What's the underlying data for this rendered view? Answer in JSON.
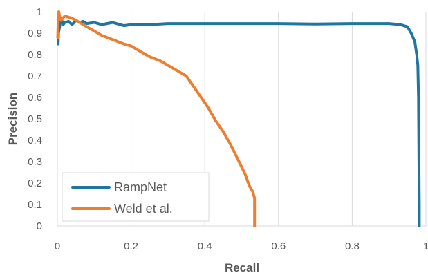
{
  "chart_data": {
    "type": "line",
    "title": "",
    "xlabel": "Recall",
    "ylabel": "Precision",
    "xlim": [
      0,
      1
    ],
    "ylim": [
      0,
      1
    ],
    "grid": "vertical",
    "legend_position": "bottom-left",
    "x_ticks": [
      "0",
      "0.2",
      "0.4",
      "0.6",
      "0.8",
      "1"
    ],
    "y_ticks": [
      "0",
      "0.1",
      "0.2",
      "0.3",
      "0.4",
      "0.5",
      "0.6",
      "0.7",
      "0.8",
      "0.9",
      "1"
    ],
    "series": [
      {
        "name": "RampNet",
        "color": "#1f77a0",
        "x": [
          0.002,
          0.003,
          0.005,
          0.008,
          0.012,
          0.016,
          0.02,
          0.03,
          0.04,
          0.05,
          0.06,
          0.07,
          0.08,
          0.1,
          0.12,
          0.15,
          0.18,
          0.2,
          0.25,
          0.3,
          0.4,
          0.5,
          0.6,
          0.7,
          0.8,
          0.85,
          0.9,
          0.93,
          0.95,
          0.96,
          0.97,
          0.975,
          0.978,
          0.98,
          0.981,
          0.982,
          0.982
        ],
        "y": [
          0.85,
          0.9,
          0.92,
          0.95,
          0.96,
          0.94,
          0.95,
          0.955,
          0.94,
          0.96,
          0.95,
          0.955,
          0.945,
          0.95,
          0.94,
          0.95,
          0.935,
          0.94,
          0.94,
          0.945,
          0.945,
          0.945,
          0.945,
          0.943,
          0.945,
          0.945,
          0.945,
          0.94,
          0.93,
          0.9,
          0.86,
          0.8,
          0.75,
          0.6,
          0.3,
          0.1,
          0.0
        ]
      },
      {
        "name": "Weld et al.",
        "color": "#ed7d31",
        "x": [
          0.001,
          0.002,
          0.004,
          0.006,
          0.01,
          0.015,
          0.02,
          0.03,
          0.04,
          0.05,
          0.06,
          0.08,
          0.1,
          0.12,
          0.15,
          0.18,
          0.2,
          0.22,
          0.25,
          0.28,
          0.3,
          0.33,
          0.35,
          0.37,
          0.39,
          0.41,
          0.43,
          0.45,
          0.47,
          0.49,
          0.51,
          0.52,
          0.53,
          0.535,
          0.535,
          0.535
        ],
        "y": [
          0.88,
          0.95,
          1.0,
          0.98,
          0.96,
          0.97,
          0.98,
          0.975,
          0.97,
          0.96,
          0.95,
          0.93,
          0.91,
          0.89,
          0.87,
          0.85,
          0.84,
          0.82,
          0.79,
          0.77,
          0.75,
          0.72,
          0.7,
          0.65,
          0.6,
          0.55,
          0.49,
          0.44,
          0.38,
          0.31,
          0.24,
          0.19,
          0.16,
          0.13,
          0.05,
          0.0
        ]
      }
    ]
  }
}
